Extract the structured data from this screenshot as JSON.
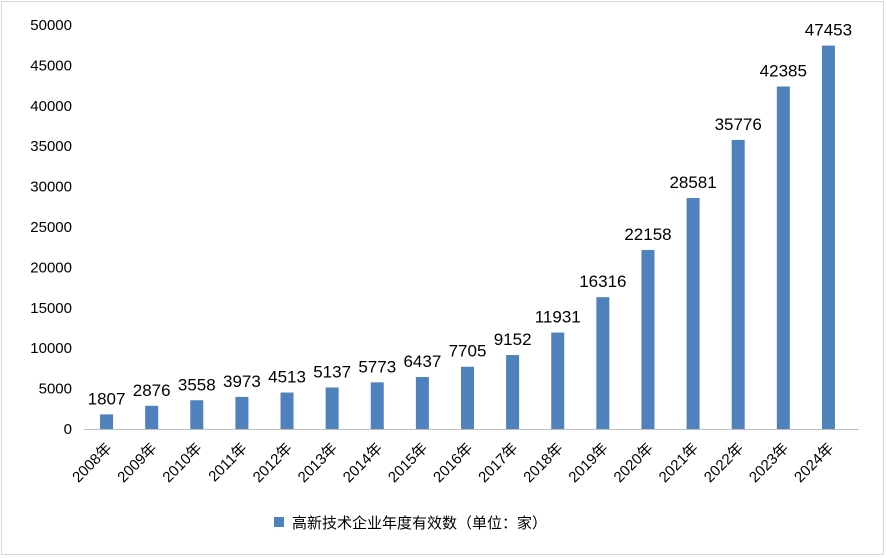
{
  "chart_data": {
    "type": "bar",
    "title": "",
    "xlabel": "",
    "ylabel": "",
    "categories": [
      "2008年",
      "2009年",
      "2010年",
      "2011年",
      "2012年",
      "2013年",
      "2014年",
      "2015年",
      "2016年",
      "2017年",
      "2018年",
      "2019年",
      "2020年",
      "2021年",
      "2022年",
      "2023年",
      "2024年"
    ],
    "series": [
      {
        "name": "高新技术企业年度有效数（单位：家）",
        "values": [
          1807,
          2876,
          3558,
          3973,
          4513,
          5137,
          5773,
          6437,
          7705,
          9152,
          11931,
          16316,
          22158,
          28581,
          35776,
          42385,
          47453
        ],
        "color": "#4f81bd"
      }
    ],
    "ylim": [
      0,
      50000
    ],
    "yticks": [
      0,
      5000,
      10000,
      15000,
      20000,
      25000,
      30000,
      35000,
      40000,
      45000,
      50000
    ],
    "grid": false,
    "data_labels": true,
    "legend_position": "bottom-center"
  }
}
